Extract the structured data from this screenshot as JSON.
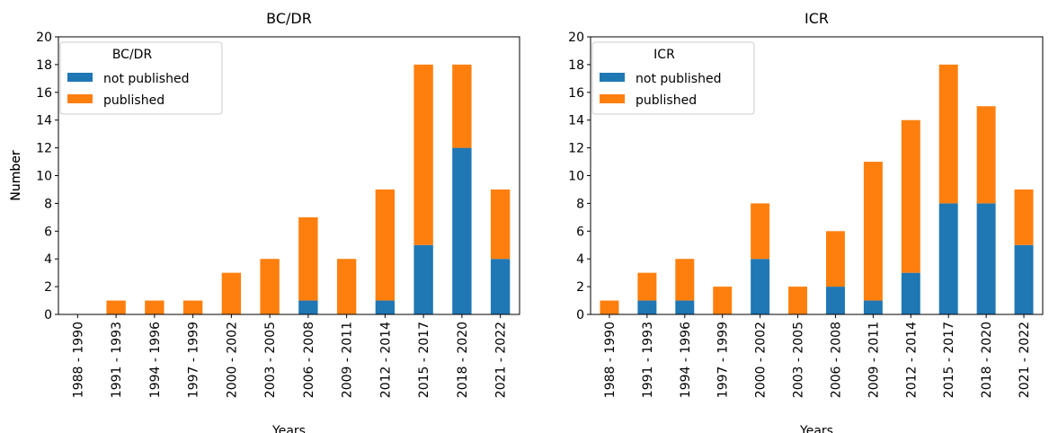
{
  "chart_data": [
    {
      "type": "stacked_bar",
      "title": "BC/DR",
      "legend_title": "BC/DR",
      "xlabel": "Years",
      "ylabel": "Number",
      "categories": [
        "1988 - 1990",
        "1991 - 1993",
        "1994 - 1996",
        "1997 - 1999",
        "2000 - 2002",
        "2003 - 2005",
        "2006 - 2008",
        "2009 - 2011",
        "2012 - 2014",
        "2015 - 2017",
        "2018 - 2020",
        "2021 - 2022"
      ],
      "series": [
        {
          "name": "not published",
          "color": "#1f77b4",
          "values": [
            0,
            0,
            0,
            0,
            0,
            0,
            1,
            0,
            1,
            5,
            12,
            4
          ]
        },
        {
          "name": "published",
          "color": "#ff7f0e",
          "values": [
            0,
            1,
            1,
            1,
            3,
            4,
            6,
            4,
            8,
            13,
            6,
            5
          ]
        }
      ],
      "ylim": [
        0,
        20
      ],
      "yticks": [
        0,
        2,
        4,
        6,
        8,
        10,
        12,
        14,
        16,
        18,
        20
      ],
      "legend": "upper left"
    },
    {
      "type": "stacked_bar",
      "title": "ICR",
      "legend_title": "ICR",
      "xlabel": "Years",
      "ylabel": "Number",
      "categories": [
        "1988 - 1990",
        "1991 - 1993",
        "1994 - 1996",
        "1997 - 1999",
        "2000 - 2002",
        "2003 - 2005",
        "2006 - 2008",
        "2009 - 2011",
        "2012 - 2014",
        "2015 - 2017",
        "2018 - 2020",
        "2021 - 2022"
      ],
      "series": [
        {
          "name": "not published",
          "color": "#1f77b4",
          "values": [
            0,
            1,
            1,
            0,
            4,
            0,
            2,
            1,
            3,
            8,
            8,
            5
          ]
        },
        {
          "name": "published",
          "color": "#ff7f0e",
          "values": [
            1,
            2,
            3,
            2,
            4,
            2,
            4,
            10,
            11,
            10,
            7,
            4
          ]
        }
      ],
      "ylim": [
        0,
        20
      ],
      "yticks": [
        0,
        2,
        4,
        6,
        8,
        10,
        12,
        14,
        16,
        18,
        20
      ],
      "legend": "upper left"
    }
  ]
}
